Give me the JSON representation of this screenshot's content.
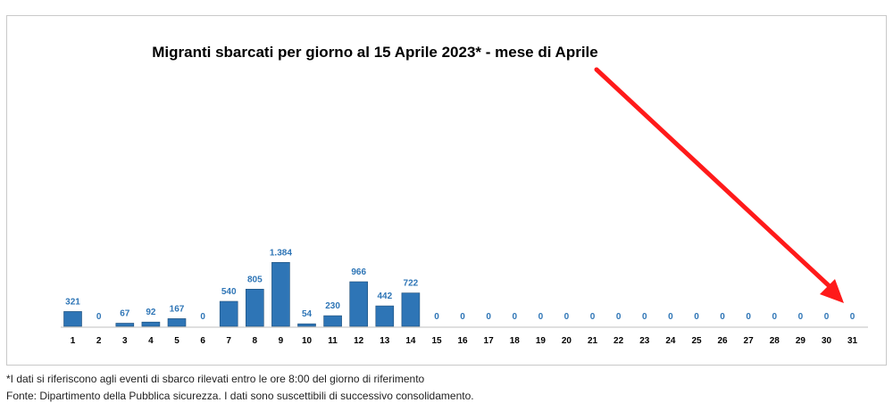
{
  "chart_data": {
    "type": "bar",
    "title": "Migranti sbarcati per giorno al 15 Aprile 2023* - mese di Aprile",
    "categories": [
      "1",
      "2",
      "3",
      "4",
      "5",
      "6",
      "7",
      "8",
      "9",
      "10",
      "11",
      "12",
      "13",
      "14",
      "15",
      "16",
      "17",
      "18",
      "19",
      "20",
      "21",
      "22",
      "23",
      "24",
      "25",
      "26",
      "27",
      "28",
      "29",
      "30",
      "31"
    ],
    "values": [
      321,
      0,
      67,
      92,
      167,
      0,
      540,
      805,
      1384,
      54,
      230,
      966,
      442,
      722,
      0,
      0,
      0,
      0,
      0,
      0,
      0,
      0,
      0,
      0,
      0,
      0,
      0,
      0,
      0,
      0,
      0
    ],
    "data_labels": [
      "321",
      "0",
      "67",
      "92",
      "167",
      "0",
      "540",
      "805",
      "1.384",
      "54",
      "230",
      "966",
      "442",
      "722",
      "0",
      "0",
      "0",
      "0",
      "0",
      "0",
      "0",
      "0",
      "0",
      "0",
      "0",
      "0",
      "0",
      "0",
      "0",
      "0",
      "0"
    ],
    "ylim": [
      0,
      5600
    ],
    "grid": false,
    "bar_color": "#2e75b6",
    "bar_edge_color": "#1f4e79",
    "label_color": "#2e75b6",
    "annotation_arrow_color": "#ff0000"
  },
  "footnotes": {
    "note": "*I dati si riferiscono agli eventi di sbarco rilevati entro le ore 8:00 del giorno di riferimento",
    "source": "Fonte: Dipartimento della Pubblica sicurezza. I dati sono suscettibili di successivo consolidamento."
  }
}
